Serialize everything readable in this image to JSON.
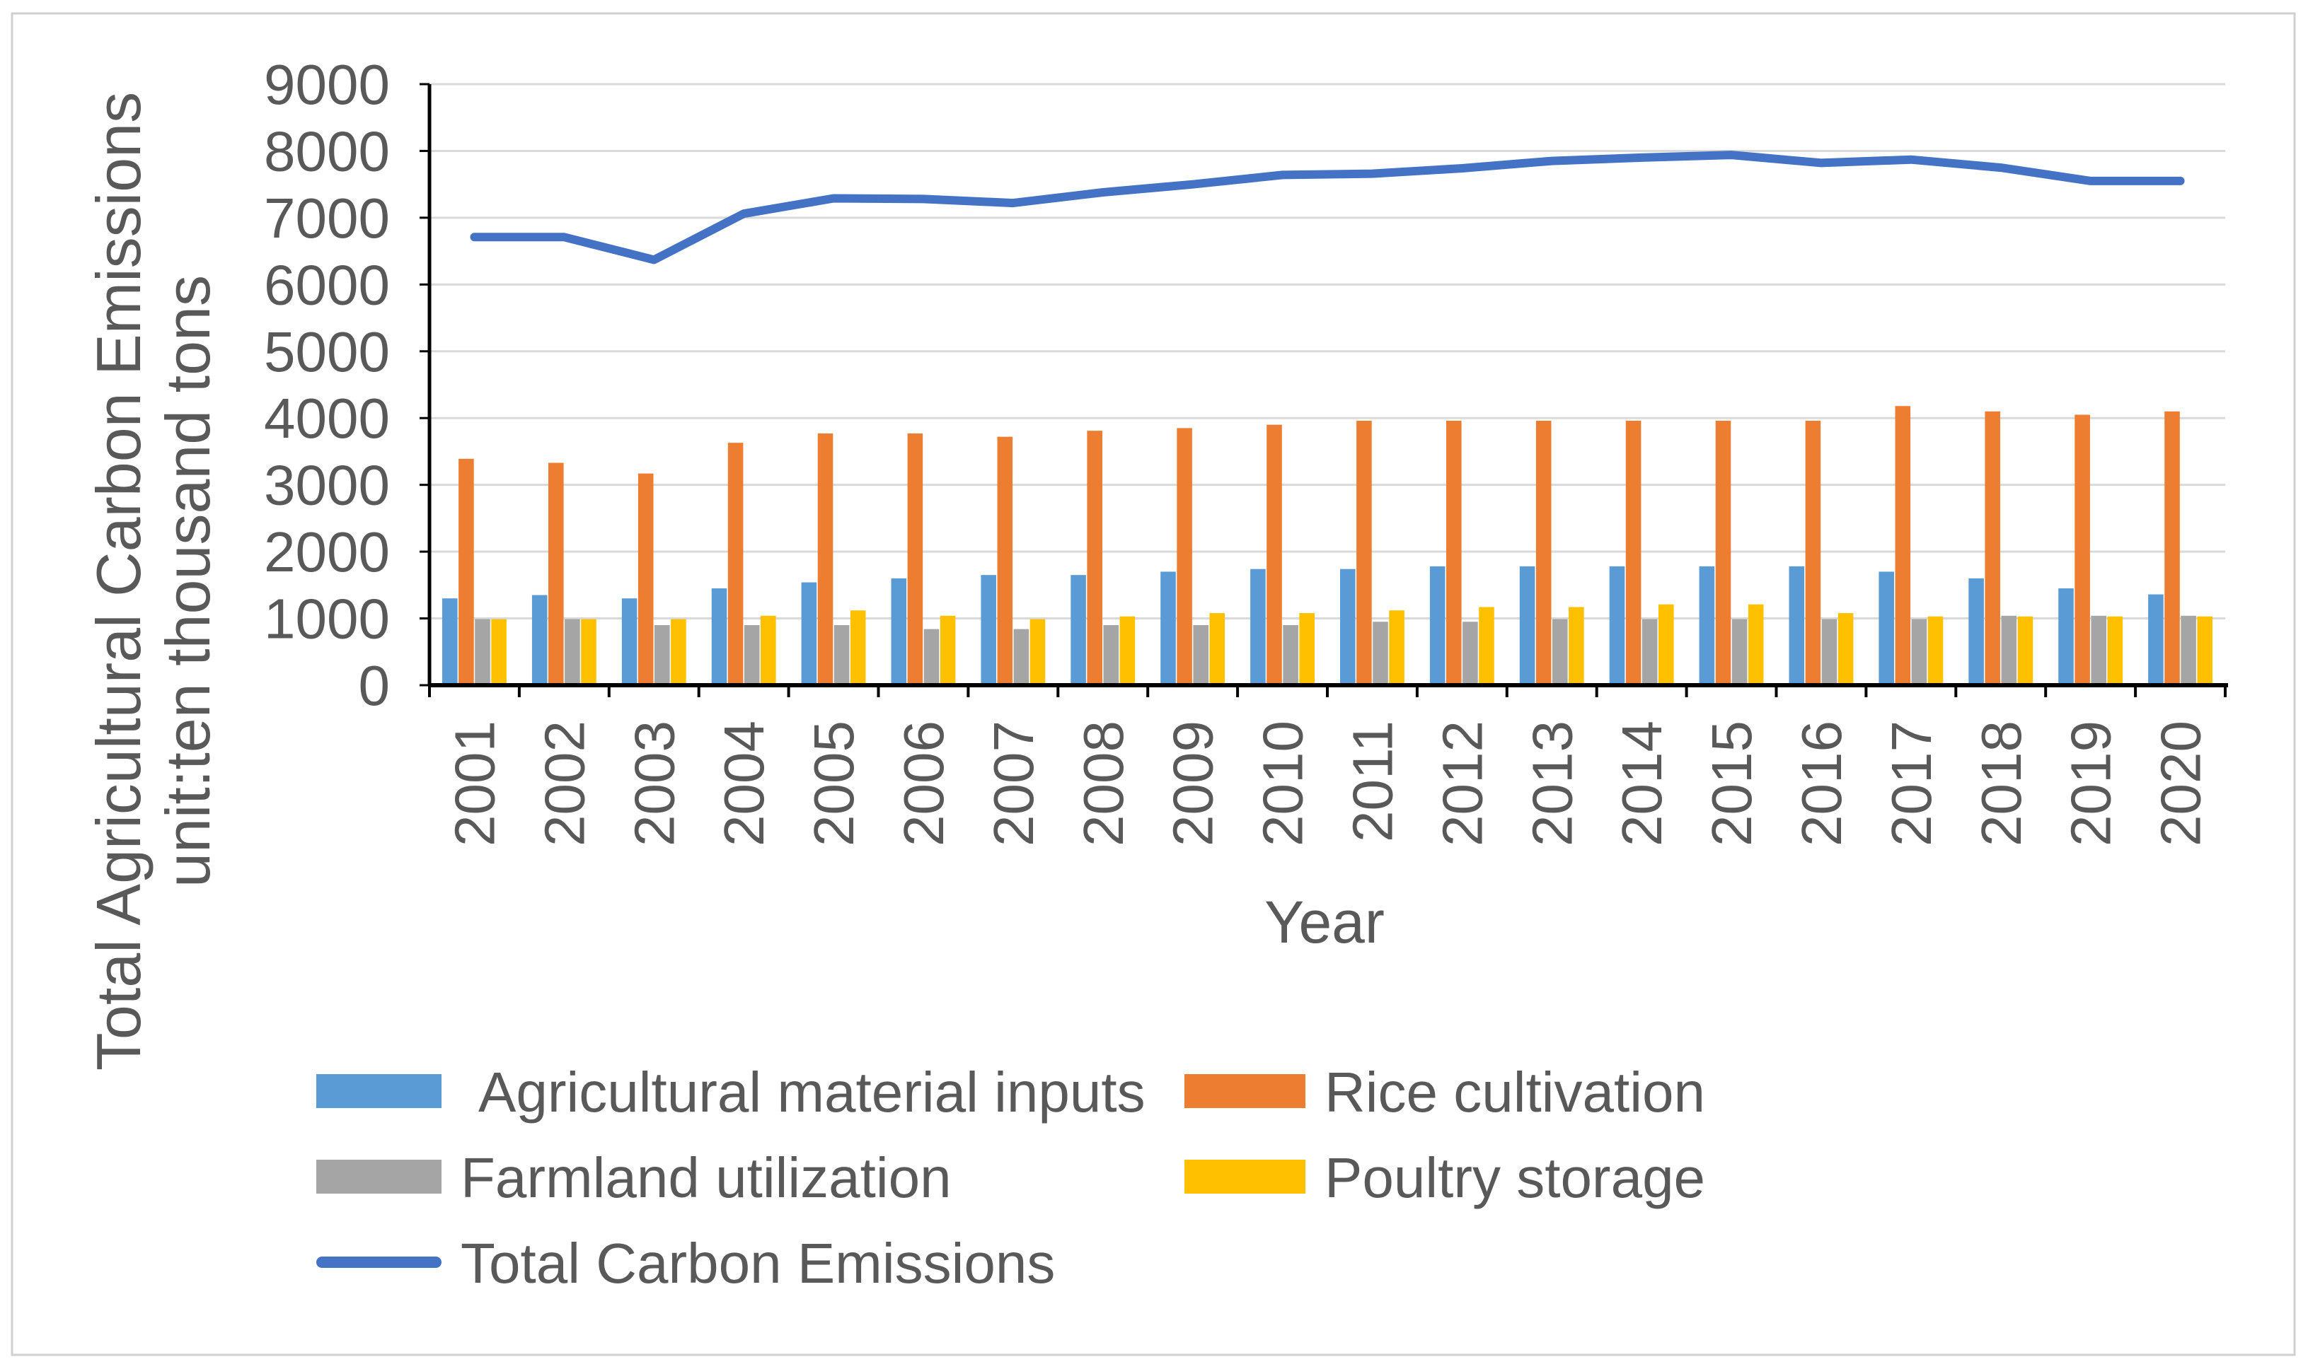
{
  "chart_data": {
    "type": "bar",
    "title": "",
    "xlabel": "Year",
    "ylabel": [
      "Total Agricultural Carbon Emissions",
      "unit:ten thousand tons"
    ],
    "ylim": [
      0,
      9000
    ],
    "yticks": [
      0,
      1000,
      2000,
      3000,
      4000,
      5000,
      6000,
      7000,
      8000,
      9000
    ],
    "grid": true,
    "legend": "bottom",
    "categories": [
      "2001",
      "2002",
      "2003",
      "2004",
      "2005",
      "2006",
      "2007",
      "2008",
      "2009",
      "2010",
      "2011",
      "2012",
      "2013",
      "2014",
      "2015",
      "2016",
      "2017",
      "2018",
      "2019",
      "2020"
    ],
    "series": [
      {
        "name": "Agricultural material inputs",
        "type": "bar",
        "color": "#5B9BD5",
        "values": [
          1300,
          1350,
          1300,
          1450,
          1540,
          1600,
          1650,
          1650,
          1700,
          1740,
          1740,
          1780,
          1780,
          1780,
          1780,
          1780,
          1700,
          1600,
          1450,
          1360
        ]
      },
      {
        "name": "Rice cultivation",
        "type": "bar",
        "color": "#ED7D31",
        "values": [
          3390,
          3330,
          3170,
          3630,
          3770,
          3770,
          3720,
          3810,
          3850,
          3900,
          3960,
          3960,
          3960,
          3960,
          3960,
          3960,
          4180,
          4100,
          4050,
          4100
        ]
      },
      {
        "name": "Farmland utilization",
        "type": "bar",
        "color": "#A5A5A5",
        "values": [
          990,
          990,
          900,
          900,
          900,
          840,
          840,
          900,
          900,
          900,
          950,
          950,
          990,
          990,
          990,
          990,
          990,
          1040,
          1040,
          1040
        ]
      },
      {
        "name": "Poultry storage",
        "type": "bar",
        "color": "#FFC000",
        "values": [
          990,
          990,
          990,
          1040,
          1120,
          1040,
          990,
          1030,
          1080,
          1080,
          1120,
          1170,
          1170,
          1210,
          1210,
          1080,
          1030,
          1030,
          1030,
          1030
        ]
      },
      {
        "name": "Total Carbon Emissions",
        "type": "line",
        "color": "#4472C4",
        "values": [
          6710,
          6710,
          6370,
          7060,
          7290,
          7280,
          7220,
          7380,
          7500,
          7640,
          7660,
          7740,
          7850,
          7900,
          7940,
          7820,
          7870,
          7750,
          7550,
          7550
        ]
      }
    ]
  }
}
